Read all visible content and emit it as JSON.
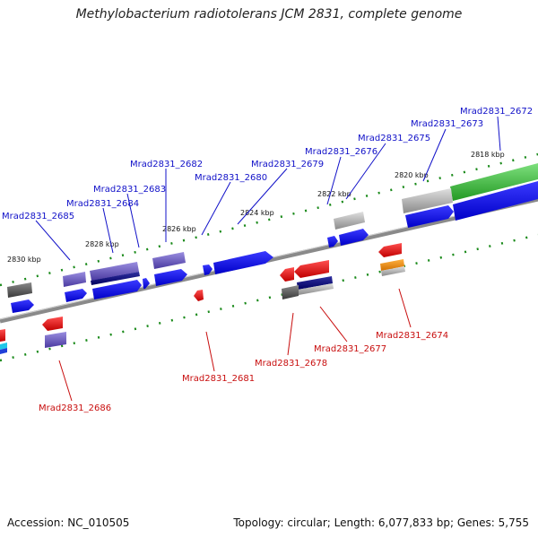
{
  "title": "Methylobacterium radiotolerans JCM 2831, complete genome",
  "footer": {
    "accession": "Accession: NC_010505",
    "summary": "Topology: circular; Length: 6,077,833 bp; Genes: 5,755"
  },
  "colors": {
    "backbone": "#8a8a8a",
    "forward_label": "#1010c8",
    "reverse_label": "#c80e0e",
    "ticks": "#1a8a1a"
  },
  "kbp_ticks": [
    "2818 kbp",
    "2820 kbp",
    "2822 kbp",
    "2824 kbp",
    "2826 kbp",
    "2828 kbp",
    "2830 kbp"
  ],
  "forward_labels": [
    "Mrad2831_2672",
    "Mrad2831_2673",
    "Mrad2831_2675",
    "Mrad2831_2676",
    "Mrad2831_2679",
    "Mrad2831_2680",
    "Mrad2831_2682",
    "Mrad2831_2683",
    "Mrad2831_2684",
    "Mrad2831_2685"
  ],
  "reverse_labels": [
    "Mrad2831_2674",
    "Mrad2831_2677",
    "Mrad2831_2678",
    "Mrad2831_2681",
    "Mrad2831_2686"
  ]
}
